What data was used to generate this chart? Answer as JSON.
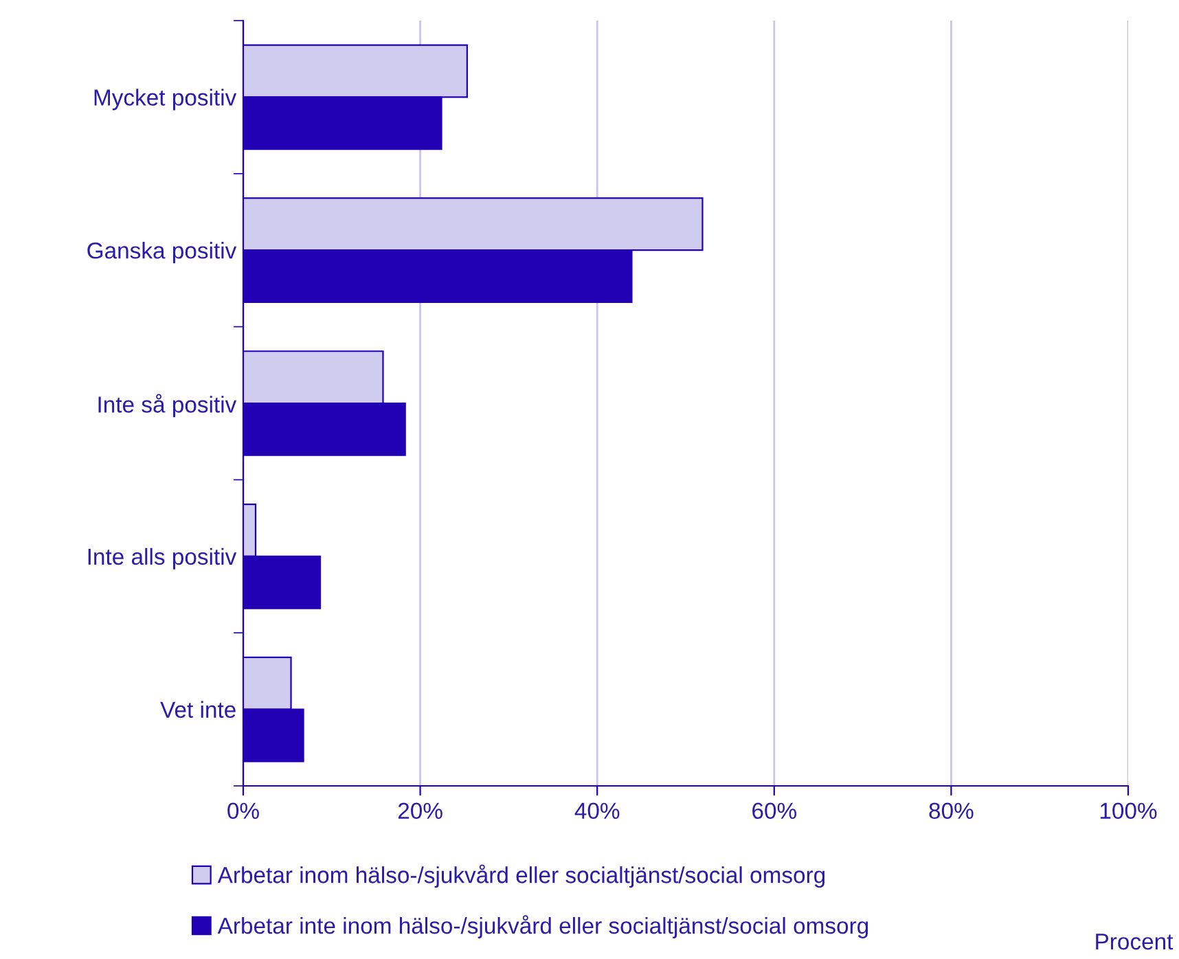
{
  "chart_data": {
    "type": "bar",
    "orientation": "horizontal",
    "categories": [
      "Mycket positiv",
      "Ganska positiv",
      "Inte så positiv",
      "Inte alls positiv",
      "Vet inte"
    ],
    "series": [
      {
        "name": "Arbetar inom hälso-/sjukvård eller socialtjänst/social omsorg",
        "color": "#d0ccf0",
        "values": [
          25.3,
          51.9,
          15.8,
          1.4,
          5.4
        ]
      },
      {
        "name": "Arbetar inte inom hälso-/sjukvård eller socialtjänst/social omsorg",
        "color": "#2200b4",
        "values": [
          22.4,
          43.9,
          18.3,
          8.7,
          6.8
        ]
      }
    ],
    "annotations": [
      "Procent"
    ],
    "xlim": [
      0,
      100
    ],
    "xticks": [
      {
        "value": 0,
        "label": "0%"
      },
      {
        "value": 20,
        "label": "20%"
      },
      {
        "value": 40,
        "label": "40%"
      },
      {
        "value": 60,
        "label": "60%"
      },
      {
        "value": 80,
        "label": "80%"
      },
      {
        "value": 100,
        "label": "100%"
      }
    ],
    "grid": "x",
    "legend": "bottom"
  }
}
